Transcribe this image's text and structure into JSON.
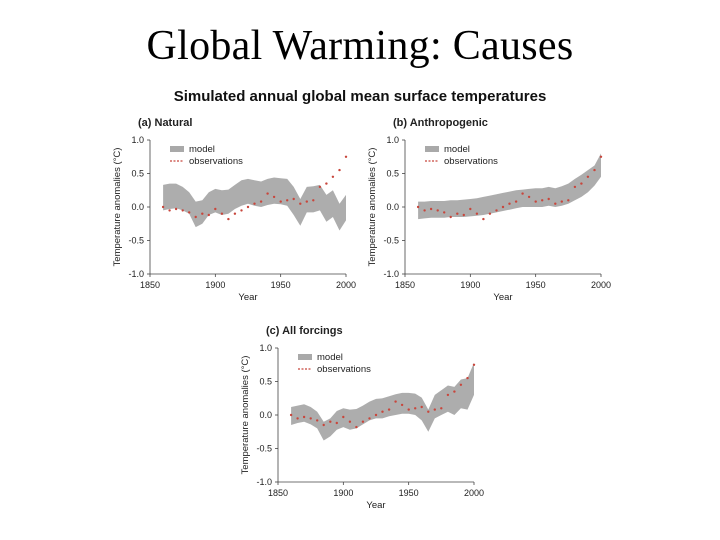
{
  "slide": {
    "title": "Global Warming: Causes"
  },
  "figure": {
    "title": "Simulated annual global mean surface temperatures"
  },
  "colors": {
    "model": "#a9a9a9",
    "observations": "#c8463c",
    "axis": "#444444"
  },
  "chart_data": [
    {
      "type": "area",
      "title": "(a) Natural",
      "xlabel": "Year",
      "ylabel": "Temperature anomalies (°C)",
      "xlim": [
        1850,
        2000
      ],
      "ylim": [
        -1.0,
        1.0
      ],
      "xticks": [
        "1850",
        "1900",
        "1950",
        "2000"
      ],
      "yticks": [
        "1.0",
        "0.5",
        "0.0",
        "-0.5",
        "-1.0"
      ],
      "legend": {
        "position": "top-left",
        "entries": [
          "model",
          "observations"
        ]
      },
      "series": [
        {
          "name": "model",
          "kind": "band",
          "x": [
            1860,
            1865,
            1870,
            1875,
            1880,
            1885,
            1890,
            1895,
            1900,
            1905,
            1910,
            1915,
            1920,
            1925,
            1930,
            1935,
            1940,
            1945,
            1950,
            1955,
            1960,
            1965,
            1970,
            1975,
            1980,
            1985,
            1990,
            1995,
            2000
          ],
          "low": [
            -0.05,
            -0.03,
            -0.02,
            -0.05,
            -0.1,
            -0.3,
            -0.25,
            -0.12,
            -0.08,
            -0.12,
            -0.1,
            -0.03,
            0.02,
            0.05,
            0.02,
            0.0,
            0.03,
            0.05,
            0.04,
            0.02,
            -0.12,
            -0.28,
            -0.08,
            -0.08,
            -0.05,
            -0.22,
            -0.15,
            -0.35,
            -0.2
          ],
          "high": [
            0.33,
            0.35,
            0.35,
            0.3,
            0.22,
            0.08,
            0.1,
            0.22,
            0.27,
            0.25,
            0.26,
            0.33,
            0.4,
            0.42,
            0.4,
            0.38,
            0.42,
            0.44,
            0.43,
            0.42,
            0.3,
            0.12,
            0.3,
            0.31,
            0.33,
            0.18,
            0.25,
            0.05,
            0.18
          ]
        },
        {
          "name": "observations",
          "kind": "line",
          "x": [
            1860,
            1865,
            1870,
            1875,
            1880,
            1885,
            1890,
            1895,
            1900,
            1905,
            1910,
            1915,
            1920,
            1925,
            1930,
            1935,
            1940,
            1945,
            1950,
            1955,
            1960,
            1965,
            1970,
            1975,
            1980,
            1985,
            1990,
            1995,
            2000
          ],
          "y": [
            0.0,
            -0.05,
            -0.03,
            -0.05,
            -0.08,
            -0.15,
            -0.1,
            -0.12,
            -0.03,
            -0.1,
            -0.18,
            -0.1,
            -0.05,
            0.0,
            0.05,
            0.08,
            0.2,
            0.15,
            0.08,
            0.1,
            0.12,
            0.05,
            0.08,
            0.1,
            0.3,
            0.35,
            0.45,
            0.55,
            0.75
          ]
        }
      ]
    },
    {
      "type": "area",
      "title": "(b) Anthropogenic",
      "xlabel": "Year",
      "ylabel": "Temperature anomalies (°C)",
      "xlim": [
        1850,
        2000
      ],
      "ylim": [
        -1.0,
        1.0
      ],
      "xticks": [
        "1850",
        "1900",
        "1950",
        "2000"
      ],
      "yticks": [
        "1.0",
        "0.5",
        "0.0",
        "-0.5",
        "-1.0"
      ],
      "legend": {
        "position": "top-left",
        "entries": [
          "model",
          "observations"
        ]
      },
      "series": [
        {
          "name": "model",
          "kind": "band",
          "x": [
            1860,
            1865,
            1870,
            1875,
            1880,
            1885,
            1890,
            1895,
            1900,
            1905,
            1910,
            1915,
            1920,
            1925,
            1930,
            1935,
            1940,
            1945,
            1950,
            1955,
            1960,
            1965,
            1970,
            1975,
            1980,
            1985,
            1990,
            1995,
            2000
          ],
          "low": [
            -0.18,
            -0.17,
            -0.16,
            -0.16,
            -0.16,
            -0.15,
            -0.15,
            -0.15,
            -0.14,
            -0.13,
            -0.12,
            -0.1,
            -0.08,
            -0.06,
            -0.04,
            -0.02,
            0.0,
            0.0,
            0.0,
            0.0,
            0.02,
            0.0,
            0.02,
            0.05,
            0.1,
            0.15,
            0.22,
            0.32,
            0.45
          ],
          "high": [
            0.08,
            0.08,
            0.09,
            0.09,
            0.09,
            0.1,
            0.1,
            0.11,
            0.12,
            0.13,
            0.15,
            0.17,
            0.19,
            0.21,
            0.23,
            0.25,
            0.26,
            0.27,
            0.28,
            0.28,
            0.3,
            0.28,
            0.31,
            0.35,
            0.42,
            0.48,
            0.55,
            0.62,
            0.8
          ]
        },
        {
          "name": "observations",
          "kind": "line",
          "x": [
            1860,
            1865,
            1870,
            1875,
            1880,
            1885,
            1890,
            1895,
            1900,
            1905,
            1910,
            1915,
            1920,
            1925,
            1930,
            1935,
            1940,
            1945,
            1950,
            1955,
            1960,
            1965,
            1970,
            1975,
            1980,
            1985,
            1990,
            1995,
            2000
          ],
          "y": [
            0.0,
            -0.05,
            -0.03,
            -0.05,
            -0.08,
            -0.15,
            -0.1,
            -0.12,
            -0.03,
            -0.1,
            -0.18,
            -0.1,
            -0.05,
            0.0,
            0.05,
            0.08,
            0.2,
            0.15,
            0.08,
            0.1,
            0.12,
            0.05,
            0.08,
            0.1,
            0.3,
            0.35,
            0.45,
            0.55,
            0.75
          ]
        }
      ]
    },
    {
      "type": "area",
      "title": "(c) All forcings",
      "xlabel": "Year",
      "ylabel": "Temperature anomalies (°C)",
      "xlim": [
        1850,
        2000
      ],
      "ylim": [
        -1.0,
        1.0
      ],
      "xticks": [
        "1850",
        "1900",
        "1950",
        "2000"
      ],
      "yticks": [
        "1.0",
        "0.5",
        "0.0",
        "-0.5",
        "-1.0"
      ],
      "legend": {
        "position": "top-left",
        "entries": [
          "model",
          "observations"
        ]
      },
      "series": [
        {
          "name": "model",
          "kind": "band",
          "x": [
            1860,
            1865,
            1870,
            1875,
            1880,
            1885,
            1890,
            1895,
            1900,
            1905,
            1910,
            1915,
            1920,
            1925,
            1930,
            1935,
            1940,
            1945,
            1950,
            1955,
            1960,
            1965,
            1970,
            1975,
            1980,
            1985,
            1990,
            1995,
            2000
          ],
          "low": [
            -0.15,
            -0.12,
            -0.1,
            -0.14,
            -0.2,
            -0.38,
            -0.32,
            -0.22,
            -0.18,
            -0.22,
            -0.2,
            -0.14,
            -0.08,
            -0.05,
            -0.05,
            -0.02,
            0.0,
            0.02,
            0.02,
            0.0,
            -0.08,
            -0.25,
            -0.05,
            0.0,
            0.05,
            0.0,
            0.1,
            0.08,
            0.3
          ],
          "high": [
            0.12,
            0.14,
            0.16,
            0.12,
            0.05,
            -0.1,
            -0.05,
            0.06,
            0.1,
            0.08,
            0.09,
            0.14,
            0.2,
            0.24,
            0.25,
            0.28,
            0.31,
            0.33,
            0.33,
            0.32,
            0.26,
            0.08,
            0.3,
            0.37,
            0.44,
            0.42,
            0.53,
            0.55,
            0.78
          ]
        },
        {
          "name": "observations",
          "kind": "line",
          "x": [
            1860,
            1865,
            1870,
            1875,
            1880,
            1885,
            1890,
            1895,
            1900,
            1905,
            1910,
            1915,
            1920,
            1925,
            1930,
            1935,
            1940,
            1945,
            1950,
            1955,
            1960,
            1965,
            1970,
            1975,
            1980,
            1985,
            1990,
            1995,
            2000
          ],
          "y": [
            0.0,
            -0.05,
            -0.03,
            -0.05,
            -0.08,
            -0.15,
            -0.1,
            -0.12,
            -0.03,
            -0.1,
            -0.18,
            -0.1,
            -0.05,
            0.0,
            0.05,
            0.08,
            0.2,
            0.15,
            0.08,
            0.1,
            0.12,
            0.05,
            0.08,
            0.1,
            0.3,
            0.35,
            0.45,
            0.55,
            0.75
          ]
        }
      ]
    }
  ]
}
